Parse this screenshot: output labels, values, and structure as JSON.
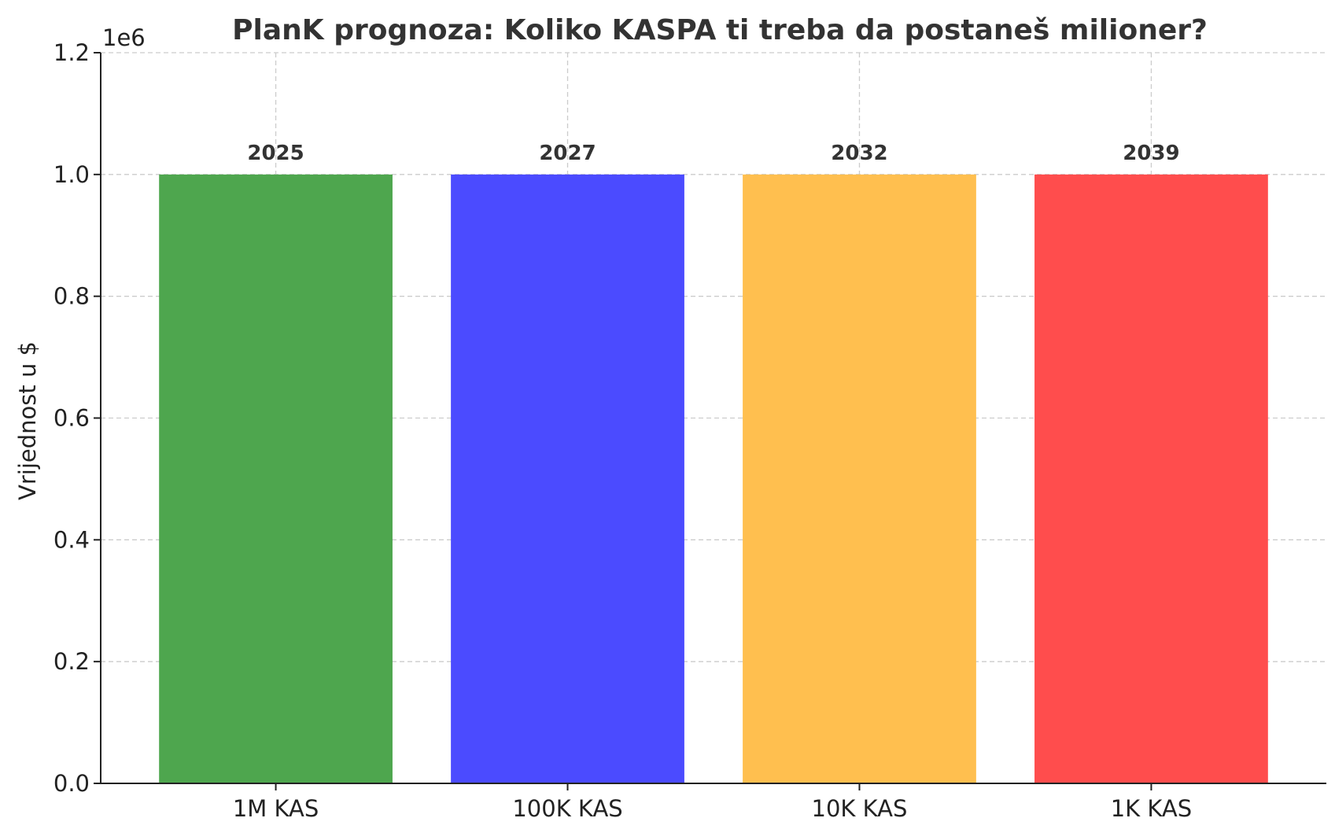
{
  "chart_data": {
    "type": "bar",
    "title": "PlanK prognoza: Koliko KASPA ti treba da postaneš milioner?",
    "xlabel": "",
    "ylabel": "Vrijednost u $",
    "y_multiplier_label": "1e6",
    "categories": [
      "1M KAS",
      "100K KAS",
      "10K KAS",
      "1K KAS"
    ],
    "values": [
      1000000,
      1000000,
      1000000,
      1000000
    ],
    "bar_labels": [
      "2025",
      "2027",
      "2032",
      "2039"
    ],
    "colors": [
      "#4ea64e",
      "#4b4bff",
      "#ffbf4f",
      "#ff4d4d"
    ],
    "ylim": [
      0,
      1200000
    ],
    "yticks": [
      0,
      200000,
      400000,
      600000,
      800000,
      1000000,
      1200000
    ],
    "ytick_labels": [
      "0.0",
      "0.2",
      "0.4",
      "0.6",
      "0.8",
      "1.0",
      "1.2"
    ],
    "grid": true
  }
}
